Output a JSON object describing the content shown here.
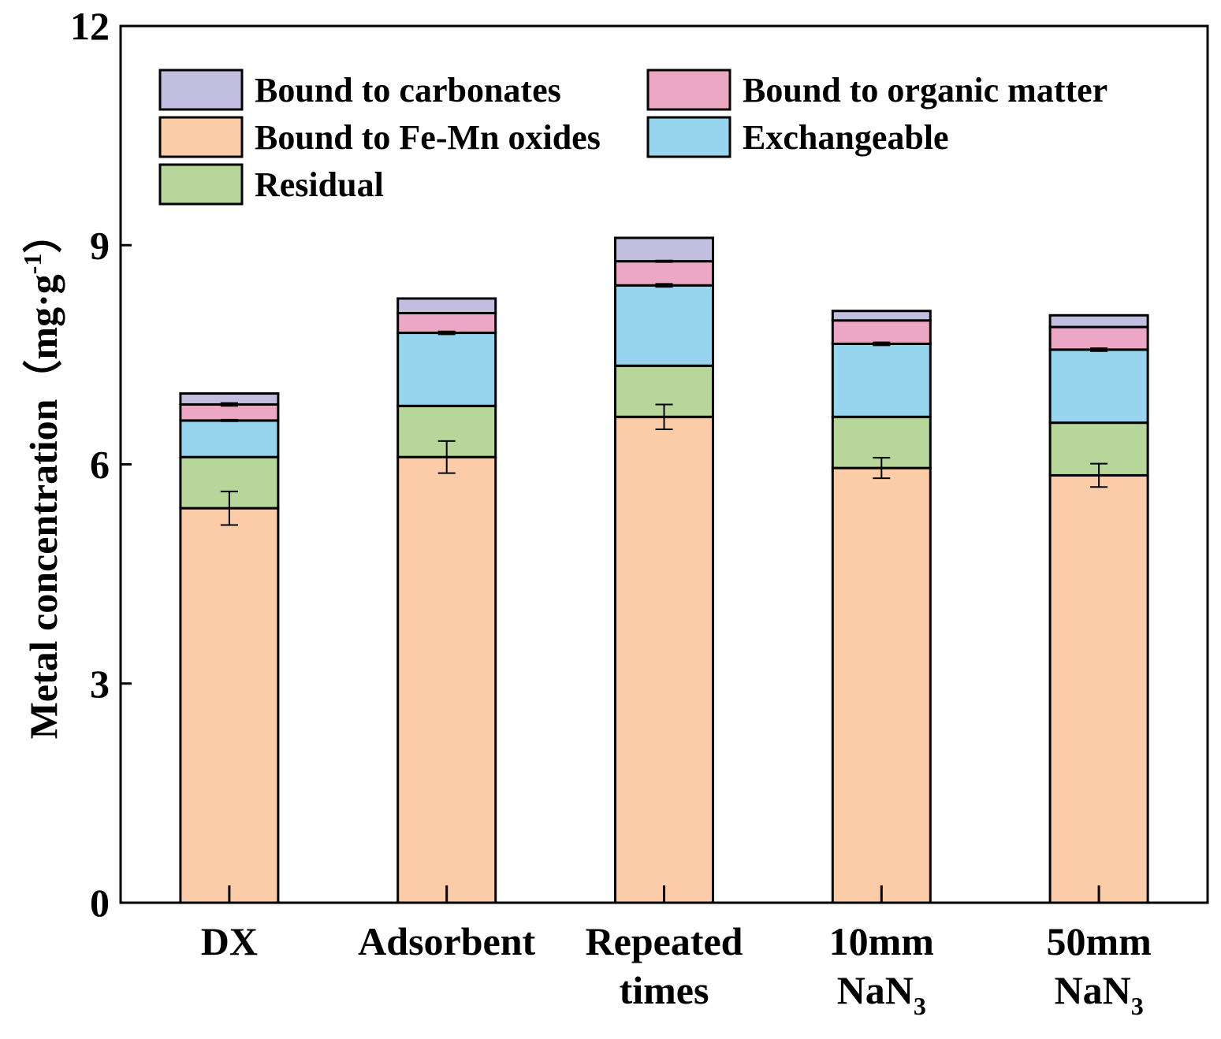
{
  "chart_data": {
    "type": "bar",
    "stacked": true,
    "title": "",
    "ylabel": "Metal concentration（mg·g",
    "ylabel_superscript": "-1",
    "ylabel_close": "）",
    "xlabel": "",
    "ylim": [
      0,
      12
    ],
    "yticks": [
      0,
      3,
      6,
      9,
      12
    ],
    "grid": false,
    "legend_position": "top-left",
    "categories": [
      {
        "lines": [
          "DX"
        ],
        "subscript": ""
      },
      {
        "lines": [
          "Adsorbent"
        ],
        "subscript": ""
      },
      {
        "lines": [
          "Repeated",
          "times"
        ],
        "subscript": ""
      },
      {
        "lines": [
          "10mm",
          "NaN"
        ],
        "subscript": "3"
      },
      {
        "lines": [
          "50mm",
          "NaN"
        ],
        "subscript": "3"
      }
    ],
    "series": [
      {
        "name": "Bound to Fe-Mn oxides",
        "color": "#fccca8",
        "values": [
          5.4,
          6.1,
          6.65,
          5.95,
          5.85
        ],
        "error": [
          0.23,
          0.22,
          0.17,
          0.14,
          0.16
        ]
      },
      {
        "name": "Residual",
        "color": "#b6d69a",
        "values": [
          0.7,
          0.7,
          0.7,
          0.7,
          0.72
        ],
        "error": [
          0,
          0,
          0,
          0,
          0
        ]
      },
      {
        "name": "Exchangeable",
        "color": "#97d5ee",
        "values": [
          0.5,
          1.0,
          1.1,
          1.0,
          1.0
        ],
        "error": [
          0.01,
          0.02,
          0.02,
          0.02,
          0.02
        ]
      },
      {
        "name": "Bound to organic matter",
        "color": "#eca7c4",
        "values": [
          0.22,
          0.27,
          0.33,
          0.32,
          0.31
        ],
        "error": [
          0.02,
          0.0,
          0.01,
          0.0,
          0.0
        ]
      },
      {
        "name": "Bound to carbonates",
        "color": "#c2bedf",
        "values": [
          0.15,
          0.2,
          0.32,
          0.13,
          0.16
        ],
        "error": [
          0,
          0,
          0,
          0,
          0
        ]
      }
    ],
    "legend": [
      {
        "series": 4,
        "label": "Bound to carbonates"
      },
      {
        "series": 3,
        "label": "Bound to organic matter"
      },
      {
        "series": 0,
        "label": "Bound to Fe-Mn oxides"
      },
      {
        "series": 2,
        "label": "Exchangeable"
      },
      {
        "series": 1,
        "label": "Residual"
      }
    ]
  }
}
